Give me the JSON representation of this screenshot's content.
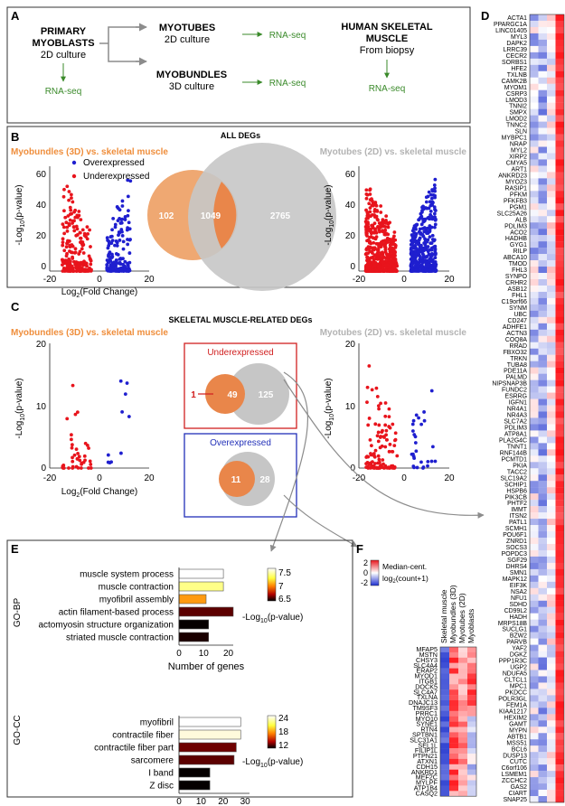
{
  "panels": {
    "A": "A",
    "B": "B",
    "C": "C",
    "D": "D",
    "E": "E",
    "F": "F"
  },
  "panel_a": {
    "primary_title_1": "PRIMARY",
    "primary_title_2": "MYOBLASTS",
    "primary_sub": "2D culture",
    "myotubes_title": "MYOTUBES",
    "myotubes_sub": "2D culture",
    "myobundles_title": "MYOBUNDLES",
    "myobundles_sub": "3D culture",
    "human_title_1": "HUMAN SKELETAL",
    "human_title_2": "MUSCLE",
    "human_sub": "From biopsy",
    "rnaseq": "RNA-seq",
    "colors": {
      "arrow_green": "#3a8a2a",
      "gray_arrow": "#8c8c8c"
    }
  },
  "panel_b": {
    "heading": "ALL DEGs",
    "left_title": "Myobundles (3D) vs. skeletal muscle",
    "right_title": "Myotubes (2D) vs. skeletal muscle",
    "legend_over": "Overexpressed",
    "legend_under": "Underexpressed",
    "venn": {
      "left_only": "102",
      "overlap": "1049",
      "right_only": "2765"
    },
    "left_xticks": [
      "-20",
      "0",
      "20"
    ],
    "left_yticks": [
      "60",
      "40",
      "20",
      "0"
    ],
    "right_xticks": [
      "-20",
      "0",
      "20"
    ],
    "right_yticks": [
      "60",
      "40",
      "20",
      "0"
    ]
  },
  "panel_c": {
    "heading": "SKELETAL MUSCLE-RELATED DEGs",
    "left_title": "Myobundles (3D) vs. skeletal muscle",
    "right_title": "Myotubes (2D) vs. skeletal muscle",
    "under_box_title": "Underexpressed",
    "over_box_title": "Overexpressed",
    "under_venn": {
      "left_only": "1",
      "overlap": "49",
      "right_only": "125"
    },
    "over_venn": {
      "overlap": "11",
      "right_only": "28"
    },
    "left_xticks": [
      "-20",
      "0",
      "20"
    ],
    "left_yticks": [
      "20",
      "10",
      "0"
    ],
    "right_xticks": [
      "-20",
      "0",
      "20"
    ],
    "right_yticks": [
      "20",
      "10",
      "0"
    ]
  },
  "axis": {
    "x_label_1": "Log",
    "x_label_sub": "2",
    "x_label_2": "(Fold Change)",
    "y_label_1": "-Log",
    "y_label_sub": "10",
    "y_label_2": "(p-value)"
  },
  "panel_e": {
    "bp_label": "GO-BP",
    "cc_label": "GO-CC",
    "bp_terms": [
      "muscle system process",
      "muscle contraction",
      "myofibril assembly",
      "actin filament-based process",
      "actomyosin structure organization",
      "striated muscle contraction"
    ],
    "bp_values": [
      18,
      18,
      11,
      22,
      12,
      12
    ],
    "bp_pcolor": [
      "#ffffff",
      "#ffff88",
      "#ff9a10",
      "#5c0000",
      "#050000",
      "#1a0000"
    ],
    "bp_xticks": [
      "0",
      "10",
      "20"
    ],
    "bp_cb_ticks": [
      "7.5",
      "7",
      "6.5"
    ],
    "cc_terms": [
      "myofibril",
      "contractile fiber",
      "contractile fiber part",
      "sarcomere",
      "I band",
      "Z disc"
    ],
    "cc_values": [
      28,
      28,
      26,
      25,
      14,
      14
    ],
    "cc_pcolor": [
      "#ffffff",
      "#fffadc",
      "#6e0000",
      "#5c0000",
      "#050000",
      "#050000"
    ],
    "cc_xticks": [
      "0",
      "10",
      "20",
      "30"
    ],
    "cc_cb_ticks": [
      "24",
      "18",
      "12"
    ],
    "x_title": "Number of genes",
    "cb_label_1": "-Log",
    "cb_label_sub": "10",
    "cb_label_2": "(p-value)"
  },
  "panel_f": {
    "legend_ticks": [
      "2",
      "0",
      "-2"
    ],
    "legend_label_1": "Median-cent.",
    "legend_label_2": "log",
    "legend_label_sub": "2",
    "legend_label_3": "(count+1)",
    "columns": [
      "Skeletal muscle",
      "Myobundles (3D)",
      "Myotubes (2D)",
      "Myoblasts"
    ],
    "genes": [
      "MFAP5",
      "MSTN",
      "CHSY3",
      "SLC4A4",
      "ERAP2",
      "MYOD1",
      "ITGB1",
      "DOCK5",
      "SLC4A7",
      "TXLNA",
      "DNAJC13",
      "TM9SF3",
      "PRRC1",
      "MYO10",
      "SYNE1",
      "RTN4",
      "SPTBN1",
      "SLC31A1",
      "SEL1L",
      "FILIP1L",
      "PTPN21",
      "ATXN1",
      "CDH15",
      "ANKRD1",
      "MEF2C",
      "MYLPF",
      "ATP1B4",
      "CASQ2"
    ]
  },
  "panel_d": {
    "genes": [
      "ACTA1",
      "PPARGC1A",
      "LINC01405",
      "MYL3",
      "DAPK2",
      "LRRC39",
      "CECR2",
      "SORBS1",
      "HFE2",
      "TXLNB",
      "CAMK2B",
      "MYOM1",
      "CSRP3",
      "LMOD3",
      "TNNI2",
      "SMPX",
      "LMOD2",
      "TNNC2",
      "SLN",
      "MYBPC1",
      "NRAP",
      "MYL2",
      "XIRP2",
      "CMYA5",
      "ART1",
      "ANKRD23",
      "MYOZ3",
      "RASIP1",
      "PFKM",
      "PFKFB3",
      "PGM1",
      "SLC25A26",
      "ALB",
      "PDLIM3",
      "ACO2",
      "HADHB",
      "GYG1",
      "RILP",
      "ABCA10",
      "TMOD",
      "FHL3",
      "SYNPO",
      "CRHR2",
      "ASB12",
      "FHL1",
      "C19orf66",
      "SYNM",
      "UBC",
      "CD247",
      "ADHFE1",
      "ACTN3",
      "COQ8A",
      "RRAD",
      "FBXO32",
      "TRKN",
      "TUBA8",
      "PDE11A",
      "PALMD",
      "NIPSNAP3B",
      "FUNDC2",
      "ESRRG",
      "IGFN1",
      "NR4A1",
      "NR4A3",
      "SLC7A2",
      "PDLIM3",
      "ATP8A1",
      "PLA2G4C",
      "TNNT1",
      "RNF144B",
      "PCMTD1",
      "PKIA",
      "TACC2",
      "SLC19A2",
      "SCHIP1",
      "HSPB6",
      "PIK3CB",
      "PHTF2",
      "IMMT",
      "ITSN2",
      "PATL1",
      "SCMH1",
      "POU6F1",
      "ZNRD1",
      "SOCS3",
      "POPDC3",
      "SGF29",
      "DHRS4",
      "SMN1",
      "MAPK12",
      "EIF3K",
      "NSA2",
      "NFU1",
      "SDHD",
      "CD99L2",
      "HADH",
      "MRPS18B",
      "SUCLG1",
      "BZW2",
      "PARVB",
      "YAF2",
      "DGKZ",
      "PPP1R3C",
      "UGP2",
      "NDUFA5",
      "CLTCL1",
      "MPC1",
      "PKDCC",
      "POLR3GL",
      "FEM1A",
      "KIAA1217",
      "HEXIM2",
      "GAMT",
      "MYPN",
      "ABTB1",
      "MSS51",
      "BCL6",
      "DUSP13",
      "CUTC",
      "C6orf106",
      "LSMEM1",
      "ZCCHC2",
      "GAS2",
      "CIART",
      "SNAP25"
    ]
  }
}
